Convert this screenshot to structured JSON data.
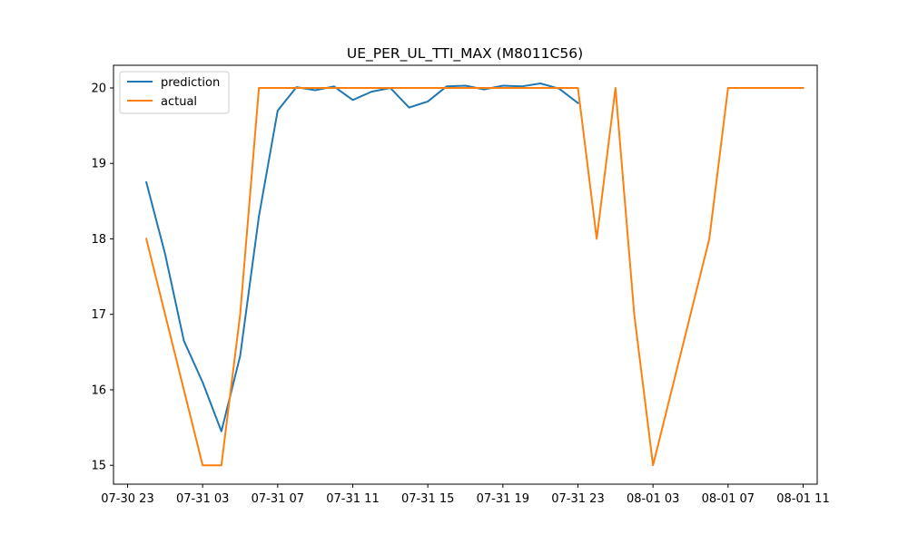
{
  "chart_data": {
    "type": "line",
    "title": "UE_PER_UL_TTI_MAX (M8011C56)",
    "xlabel": "",
    "ylabel": "",
    "x_ticks": [
      "07-30 23",
      "07-31 03",
      "07-31 07",
      "07-31 11",
      "07-31 15",
      "07-31 19",
      "07-31 23",
      "08-01 03",
      "08-01 07",
      "08-01 11"
    ],
    "y_ticks": [
      15,
      16,
      17,
      18,
      19,
      20
    ],
    "ylim": [
      14.75,
      20.3
    ],
    "xlim": [
      "07-30 22:15",
      "08-01 11:45"
    ],
    "legend_position": "upper left",
    "grid": false,
    "series": [
      {
        "name": "prediction",
        "color": "#1f77b4",
        "points": [
          [
            "07-31 00:00",
            18.75
          ],
          [
            "07-31 01:00",
            17.8
          ],
          [
            "07-31 02:00",
            16.65
          ],
          [
            "07-31 03:00",
            16.1
          ],
          [
            "07-31 04:00",
            15.45
          ],
          [
            "07-31 05:00",
            16.45
          ],
          [
            "07-31 06:00",
            18.3
          ],
          [
            "07-31 07:00",
            19.7
          ],
          [
            "07-31 08:00",
            20.01
          ],
          [
            "07-31 09:00",
            19.97
          ],
          [
            "07-31 10:00",
            20.02
          ],
          [
            "07-31 11:00",
            19.84
          ],
          [
            "07-31 12:00",
            19.95
          ],
          [
            "07-31 13:00",
            20.0
          ],
          [
            "07-31 14:00",
            19.74
          ],
          [
            "07-31 15:00",
            19.82
          ],
          [
            "07-31 16:00",
            20.02
          ],
          [
            "07-31 17:00",
            20.03
          ],
          [
            "07-31 18:00",
            19.98
          ],
          [
            "07-31 19:00",
            20.03
          ],
          [
            "07-31 20:00",
            20.02
          ],
          [
            "07-31 21:00",
            20.06
          ],
          [
            "07-31 22:00",
            19.99
          ],
          [
            "07-31 23:00",
            19.8
          ]
        ]
      },
      {
        "name": "actual",
        "color": "#ff7f0e",
        "points": [
          [
            "07-31 00:00",
            18
          ],
          [
            "07-31 01:00",
            17
          ],
          [
            "07-31 02:00",
            16
          ],
          [
            "07-31 03:00",
            15
          ],
          [
            "07-31 04:00",
            15
          ],
          [
            "07-31 05:00",
            17
          ],
          [
            "07-31 06:00",
            20
          ],
          [
            "07-31 07:00",
            20
          ],
          [
            "07-31 08:00",
            20
          ],
          [
            "07-31 09:00",
            20
          ],
          [
            "07-31 10:00",
            20
          ],
          [
            "07-31 11:00",
            20
          ],
          [
            "07-31 12:00",
            20
          ],
          [
            "07-31 13:00",
            20
          ],
          [
            "07-31 14:00",
            20
          ],
          [
            "07-31 15:00",
            20
          ],
          [
            "07-31 16:00",
            20
          ],
          [
            "07-31 17:00",
            20
          ],
          [
            "07-31 18:00",
            20
          ],
          [
            "07-31 19:00",
            20
          ],
          [
            "07-31 20:00",
            20
          ],
          [
            "07-31 21:00",
            20
          ],
          [
            "07-31 22:00",
            20
          ],
          [
            "07-31 23:00",
            20
          ],
          [
            "08-01 00:00",
            18
          ],
          [
            "08-01 01:00",
            20
          ],
          [
            "08-01 02:00",
            17
          ],
          [
            "08-01 03:00",
            15
          ],
          [
            "08-01 04:00",
            16
          ],
          [
            "08-01 05:00",
            17
          ],
          [
            "08-01 06:00",
            18
          ],
          [
            "08-01 07:00",
            20
          ],
          [
            "08-01 08:00",
            20
          ],
          [
            "08-01 09:00",
            20
          ],
          [
            "08-01 10:00",
            20
          ],
          [
            "08-01 11:00",
            20
          ]
        ]
      }
    ]
  }
}
